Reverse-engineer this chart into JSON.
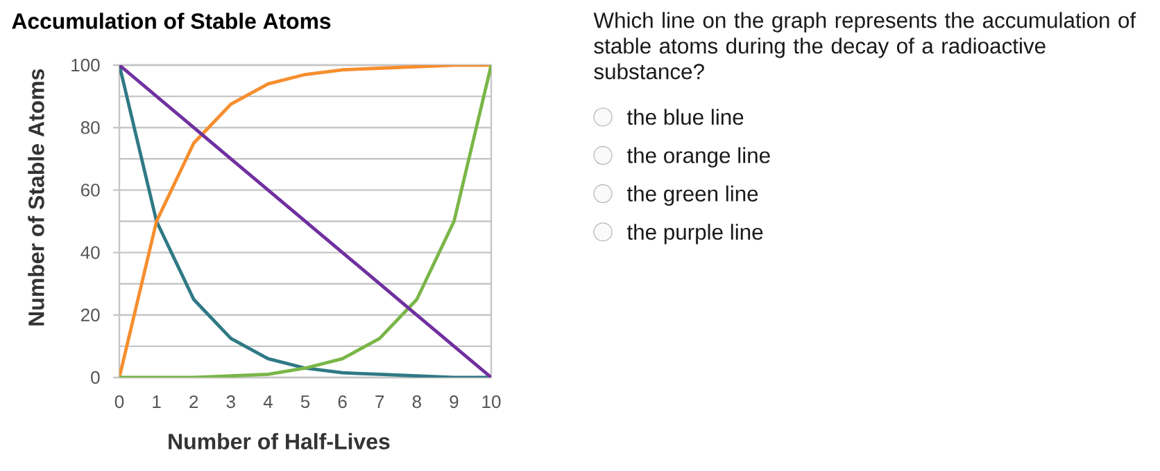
{
  "chart_data": [
    {
      "type": "line",
      "title": "Accumulation of Stable Atoms",
      "xlabel": "Number of Half-Lives",
      "ylabel": "Number of Stable Atoms",
      "x": [
        0,
        1,
        2,
        3,
        4,
        5,
        6,
        7,
        8,
        9,
        10
      ],
      "series": [
        {
          "color": "#2f7985",
          "values": [
            100,
            50,
            25,
            12.5,
            6,
            3,
            1.5,
            1,
            0.5,
            0,
            0
          ]
        },
        {
          "color": "#f68e2e",
          "values": [
            0,
            50,
            75,
            87.5,
            94,
            97,
            98.5,
            99,
            99.5,
            100,
            100
          ]
        },
        {
          "color": "#7ab648",
          "values": [
            0,
            0,
            0,
            0.5,
            1,
            3,
            6,
            12.5,
            25,
            50,
            100
          ]
        },
        {
          "color": "#7030a0",
          "values": [
            100,
            90,
            80,
            70,
            60,
            50,
            40,
            30,
            20,
            10,
            0
          ]
        }
      ],
      "xlim": [
        0,
        10
      ],
      "ylim": [
        0,
        100
      ],
      "xticks": [
        0,
        1,
        2,
        3,
        4,
        5,
        6,
        7,
        8,
        9,
        10
      ],
      "yticks": [
        0,
        {
          "value": 10,
          "label": null
        },
        20,
        {
          "value": 30,
          "label": null
        },
        40,
        {
          "value": 50,
          "label": null
        },
        60,
        {
          "value": 70,
          "label": null
        },
        80,
        {
          "value": 90,
          "label": null
        },
        100
      ],
      "grid": "y"
    },
    {
      "type": "other",
      "title": "Which line on the graph represents the accumulation of stable atoms during the decay of a radioactive substance?",
      "categories": [
        "the blue line",
        "the orange line",
        "the green line",
        "the purple line"
      ]
    }
  ]
}
